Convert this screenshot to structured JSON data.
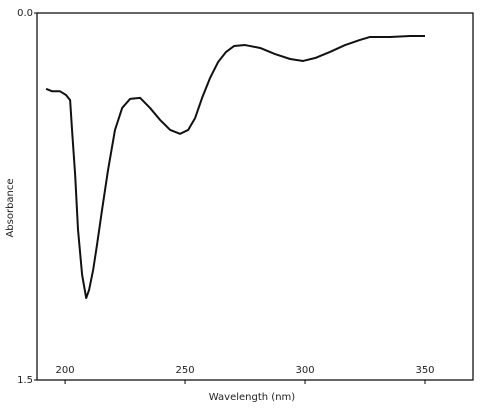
{
  "chart_data": {
    "type": "line",
    "xlabel": "Wavelength (nm)",
    "ylabel": "Absorbance",
    "xlim": [
      188.3,
      370
    ],
    "xticks": [
      200,
      250,
      300,
      350
    ],
    "ylim": [
      0,
      1.5
    ],
    "yticks": [
      {
        "value": 0,
        "label": "0.0"
      },
      1.5
    ],
    "y_inverted": true,
    "grid": false,
    "series": [
      {
        "color": "#111111",
        "x": [
          192.1,
          194.6,
          197.9,
          200.4,
          202.1,
          202.9,
          204.2,
          205.4,
          207.1,
          208.8,
          210,
          211.7,
          213.3,
          215.4,
          217.9,
          220.8,
          223.8,
          227.1,
          231.3,
          235.4,
          239.6,
          243.8,
          247.9,
          251.3,
          254.2,
          257.1,
          260.4,
          263.8,
          267.1,
          270.4,
          275,
          281.3,
          287.5,
          293.8,
          299.2,
          304.2,
          310.4,
          316.7,
          322.9,
          327.1,
          335.4,
          343.8,
          350
        ],
        "values": [
          0.31,
          0.32,
          0.32,
          0.335,
          0.356,
          0.478,
          0.662,
          0.887,
          1.07,
          1.165,
          1.132,
          1.05,
          0.948,
          0.805,
          0.642,
          0.478,
          0.388,
          0.351,
          0.347,
          0.388,
          0.437,
          0.478,
          0.494,
          0.478,
          0.429,
          0.347,
          0.266,
          0.2,
          0.159,
          0.135,
          0.131,
          0.143,
          0.168,
          0.188,
          0.196,
          0.184,
          0.159,
          0.131,
          0.11,
          0.098,
          0.098,
          0.094,
          0.094
        ]
      }
    ]
  }
}
